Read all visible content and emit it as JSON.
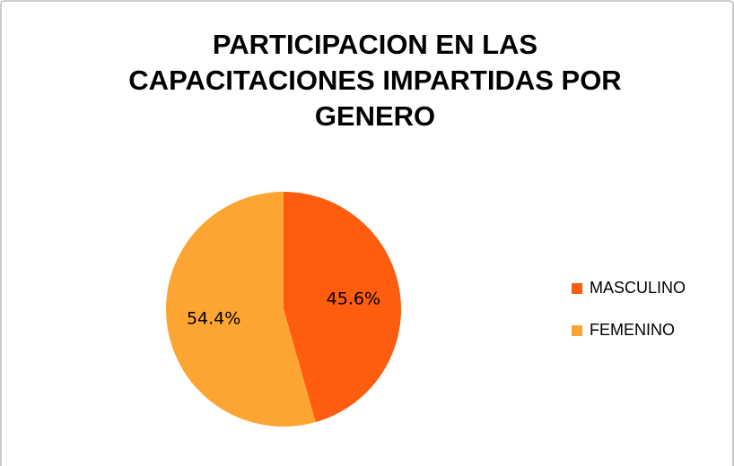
{
  "chart_data": {
    "type": "pie",
    "title": "PARTICIPACION EN LAS CAPACITACIONES IMPARTIDAS POR GENERO",
    "categories": [
      "MASCULINO",
      "FEMENINO"
    ],
    "values": [
      45.6,
      54.4
    ],
    "value_labels": [
      "45.6%",
      "54.4%"
    ],
    "colors": [
      "#fe5c0e",
      "#fca532"
    ],
    "legend": "right"
  }
}
